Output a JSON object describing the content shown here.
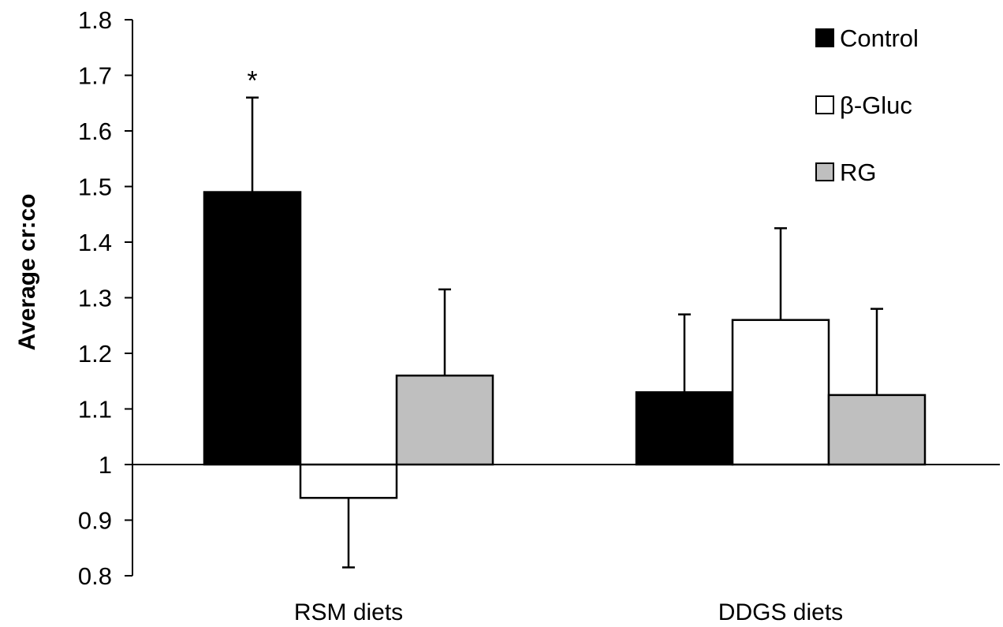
{
  "chart_data": {
    "type": "bar",
    "ylabel": "Average cr:co",
    "xlabel": "",
    "ylim": [
      0.8,
      1.8
    ],
    "baseline": 1,
    "yticks": [
      "0.8",
      "0.9",
      "1",
      "1.1",
      "1.2",
      "1.3",
      "1.4",
      "1.5",
      "1.6",
      "1.7",
      "1.8"
    ],
    "categories": [
      "RSM diets",
      "DDGS diets"
    ],
    "series": [
      {
        "name": "Control",
        "color": "#000000",
        "values": [
          1.49,
          1.13
        ],
        "error": [
          0.17,
          0.14
        ]
      },
      {
        "name": "β-Gluc",
        "color": "#ffffff",
        "values": [
          0.94,
          1.26
        ],
        "error": [
          0.125,
          0.165
        ]
      },
      {
        "name": "RG",
        "color": "#bfbfbf",
        "values": [
          1.16,
          1.125
        ],
        "error": [
          0.155,
          0.155
        ]
      }
    ],
    "annotations": [
      {
        "text": "*",
        "category": "RSM diets",
        "series": "Control"
      }
    ],
    "legend_position": "top-right",
    "grid": false
  }
}
